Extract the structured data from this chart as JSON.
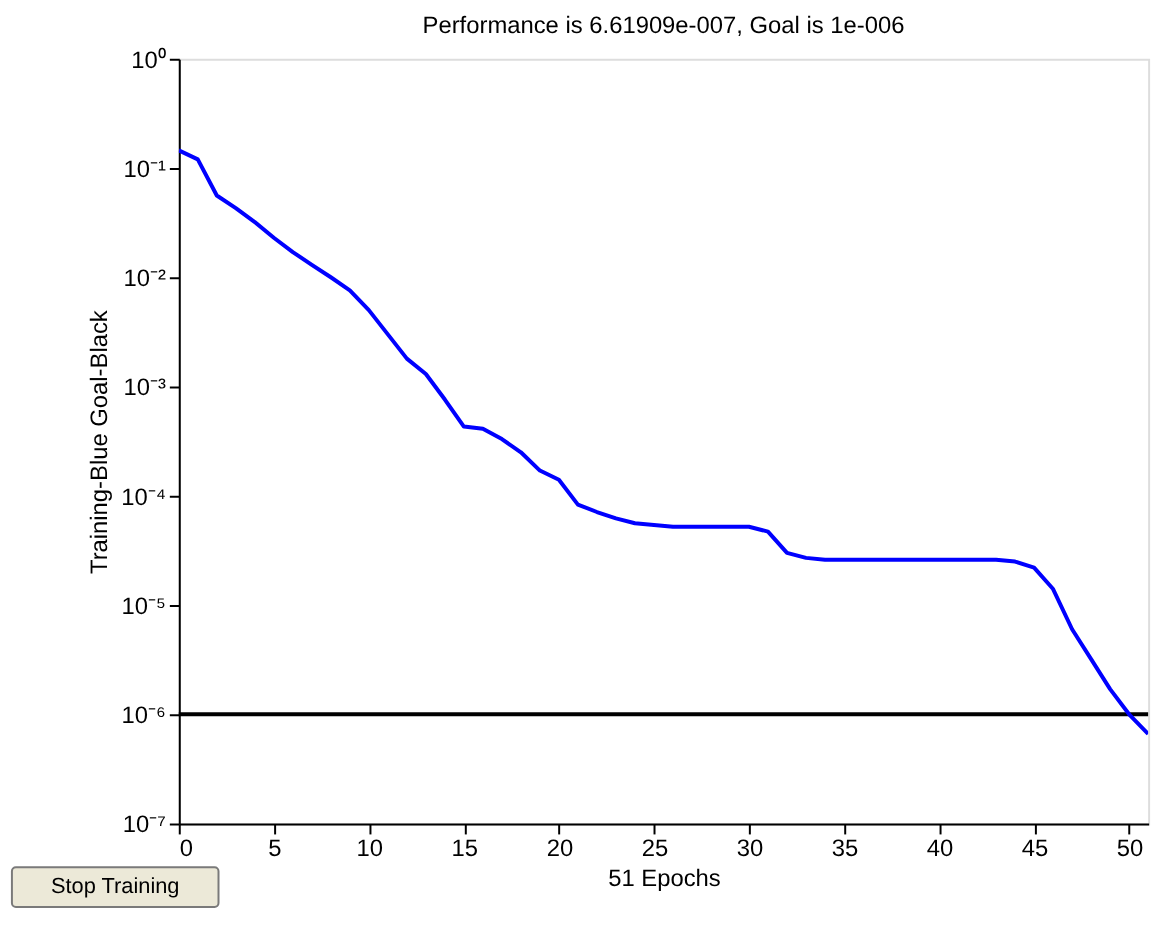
{
  "chart_data": {
    "type": "line",
    "title": "Performance is 6.61909e-007, Goal is 1e-006",
    "xlabel": "51 Epochs",
    "ylabel": "Training-Blue  Goal-Black",
    "x": [
      0,
      1,
      2,
      3,
      4,
      5,
      6,
      7,
      8,
      9,
      10,
      11,
      12,
      13,
      14,
      15,
      16,
      17,
      18,
      19,
      20,
      21,
      22,
      23,
      24,
      25,
      26,
      27,
      28,
      29,
      30,
      31,
      32,
      33,
      34,
      35,
      36,
      37,
      38,
      39,
      40,
      41,
      42,
      43,
      44,
      45,
      46,
      47,
      48,
      49,
      50,
      51
    ],
    "series": [
      {
        "color": "#0000ff",
        "values": [
          0.145,
          0.12,
          0.056,
          0.043,
          0.032,
          0.023,
          0.017,
          0.013,
          0.01,
          0.0076,
          0.005,
          0.003,
          0.0018,
          0.0013,
          0.00076,
          0.00043,
          0.00041,
          0.00033,
          0.00025,
          0.00017,
          0.00014,
          8.3e-05,
          7.1e-05,
          6.2e-05,
          5.6e-05,
          5.4e-05,
          5.2e-05,
          5.2e-05,
          5.2e-05,
          5.2e-05,
          5.2e-05,
          4.7e-05,
          3e-05,
          2.7e-05,
          2.6e-05,
          2.6e-05,
          2.6e-05,
          2.6e-05,
          2.6e-05,
          2.6e-05,
          2.6e-05,
          2.6e-05,
          2.6e-05,
          2.6e-05,
          2.5e-05,
          2.2e-05,
          1.4e-05,
          6e-06,
          3.2e-06,
          1.7e-06,
          1e-06,
          6.6e-07
        ]
      }
    ],
    "ref_lines": [
      {
        "axis": "y",
        "value": 1e-06,
        "color": "#000000"
      }
    ],
    "log": "y",
    "grid": false,
    "marker": "none",
    "line_style": "solid",
    "xlim": [
      0,
      51
    ],
    "xticks": [
      0,
      5,
      10,
      15,
      20,
      25,
      30,
      35,
      40,
      45,
      50
    ],
    "ylim": [
      1e-07,
      1
    ],
    "yticks": [
      {
        "value": 1e-07,
        "label": "10⁻⁷"
      },
      {
        "value": 1e-06,
        "label": "10⁻⁶"
      },
      {
        "value": 1e-05,
        "label": "10⁻⁵"
      },
      {
        "value": 0.0001,
        "label": "10⁻⁴"
      },
      {
        "value": 0.001,
        "label": "10⁻³"
      },
      {
        "value": 0.01,
        "label": "10⁻²"
      },
      {
        "value": 0.1,
        "label": "10⁻¹"
      },
      {
        "value": 1,
        "label": "10⁰"
      }
    ],
    "annotations": [
      "Stop Training"
    ]
  }
}
